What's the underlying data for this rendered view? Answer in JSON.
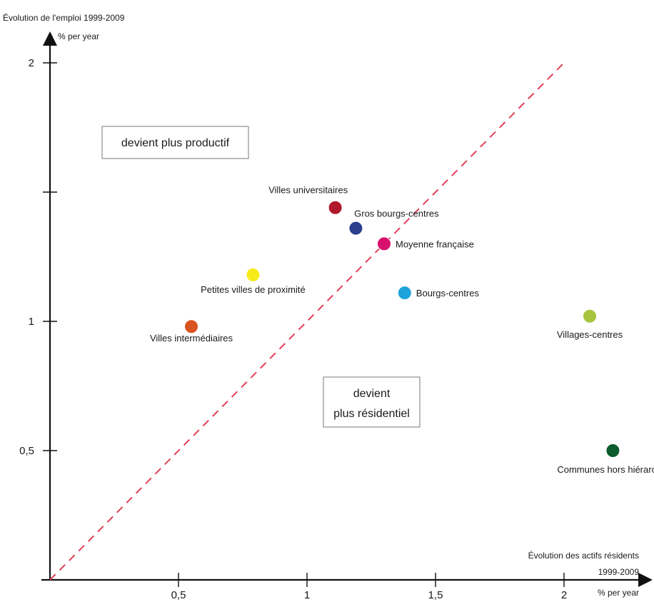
{
  "chart_data": {
    "type": "scatter",
    "y_axis_title": "Évolution de l'emploi 1999-2009",
    "y_axis_unit": "% per year",
    "x_axis_title_line1": "Évolution des actifs résidents",
    "x_axis_title_line2": "1999-2009",
    "x_axis_unit": "% per year",
    "xlim": [
      0,
      2.3
    ],
    "ylim": [
      0,
      2.1
    ],
    "x_ticks": [
      {
        "value": 0.5,
        "label": "0,5"
      },
      {
        "value": 1,
        "label": "1"
      },
      {
        "value": 1.5,
        "label": "1,5"
      },
      {
        "value": 2,
        "label": "2"
      }
    ],
    "y_ticks": [
      {
        "value": 0.5,
        "label": "0,5"
      },
      {
        "value": 1,
        "label": "1"
      },
      {
        "value": 1.5,
        "label": ""
      },
      {
        "value": 2,
        "label": "2"
      }
    ],
    "reference_line": {
      "style": "dashed",
      "equation": "y = x",
      "color": "#e0405a"
    },
    "annotations": {
      "above": {
        "lines": [
          "devient plus productif"
        ]
      },
      "below": {
        "lines": [
          "devient",
          "plus résidentiel"
        ]
      }
    },
    "points": [
      {
        "name": "Villes universitaires",
        "x": 1.11,
        "y": 1.44,
        "color": "#b0182c"
      },
      {
        "name": "Gros bourgs-centres",
        "x": 1.19,
        "y": 1.36,
        "color": "#2b3f8f"
      },
      {
        "name": "Moyenne française",
        "x": 1.3,
        "y": 1.3,
        "color": "#d9116e"
      },
      {
        "name": "Petites villes de proximité",
        "x": 0.79,
        "y": 1.18,
        "color": "#f7ea1a"
      },
      {
        "name": "Bourgs-centres",
        "x": 1.38,
        "y": 1.11,
        "color": "#1ea2dc"
      },
      {
        "name": "Villes intermédiaires",
        "x": 0.55,
        "y": 0.98,
        "color": "#d9531e"
      },
      {
        "name": "Villages-centres",
        "x": 2.1,
        "y": 1.02,
        "color": "#a6c43c"
      },
      {
        "name": "Communes hors hiérarchie",
        "x": 2.19,
        "y": 0.5,
        "color": "#0c5c2e"
      }
    ]
  }
}
